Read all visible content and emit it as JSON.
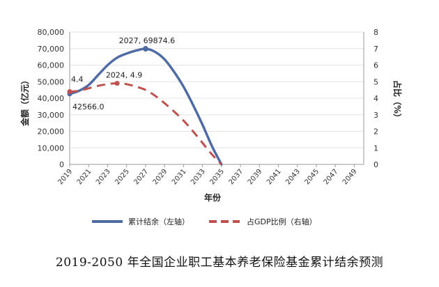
{
  "chart_data": {
    "type": "line",
    "caption": "2019-2050 年全国企业职工基本养老保险基金累计结余预测",
    "xlabel": "年份",
    "ylabel_left": "金额（亿元）",
    "ylabel_right": "占比（%）",
    "x_ticks": [
      "2019",
      "2021",
      "2023",
      "2025",
      "2027",
      "2029",
      "2031",
      "2033",
      "2035",
      "2037",
      "2039",
      "2041",
      "2043",
      "2045",
      "2047",
      "2049"
    ],
    "y_left_ticks": [
      "0",
      "10,000",
      "20,000",
      "30,000",
      "40,000",
      "50,000",
      "60,000",
      "70,000",
      "80,000"
    ],
    "y_right_ticks": [
      "0",
      "1",
      "2",
      "3",
      "4",
      "5",
      "6",
      "7",
      "8"
    ],
    "ylim_left": [
      0,
      80000
    ],
    "ylim_right": [
      0,
      8
    ],
    "xlim": [
      2019,
      2050
    ],
    "legend_position": "bottom",
    "series": [
      {
        "name": "累计结余（左轴）",
        "axis": "left",
        "color": "#4f6ba6",
        "style": "solid",
        "points": [
          [
            2019,
            42566
          ],
          [
            2020,
            44500
          ],
          [
            2021,
            48000
          ],
          [
            2022,
            54000
          ],
          [
            2023,
            60000
          ],
          [
            2024,
            64500
          ],
          [
            2025,
            67000
          ],
          [
            2026,
            68800
          ],
          [
            2027,
            69874.6
          ],
          [
            2028,
            68000
          ],
          [
            2029,
            63500
          ],
          [
            2030,
            56000
          ],
          [
            2031,
            47000
          ],
          [
            2032,
            36000
          ],
          [
            2033,
            24000
          ],
          [
            2034,
            11000
          ],
          [
            2035,
            0
          ]
        ]
      },
      {
        "name": "占GDP比例（右轴）",
        "axis": "right",
        "color": "#c0504d",
        "style": "dashed",
        "points": [
          [
            2019,
            4.4
          ],
          [
            2020,
            4.45
          ],
          [
            2021,
            4.6
          ],
          [
            2022,
            4.75
          ],
          [
            2023,
            4.85
          ],
          [
            2024,
            4.9
          ],
          [
            2025,
            4.85
          ],
          [
            2026,
            4.7
          ],
          [
            2027,
            4.5
          ],
          [
            2028,
            4.15
          ],
          [
            2029,
            3.7
          ],
          [
            2030,
            3.2
          ],
          [
            2031,
            2.65
          ],
          [
            2032,
            2.0
          ],
          [
            2033,
            1.3
          ],
          [
            2034,
            0.6
          ],
          [
            2035,
            0
          ]
        ]
      }
    ],
    "annotations": [
      {
        "text": "2027, 69874.6",
        "series": 0
      },
      {
        "text": "2024, 4.9",
        "series": 1
      },
      {
        "text": "4.4",
        "series": 1
      },
      {
        "text": "42566.0",
        "series": 0
      }
    ]
  }
}
